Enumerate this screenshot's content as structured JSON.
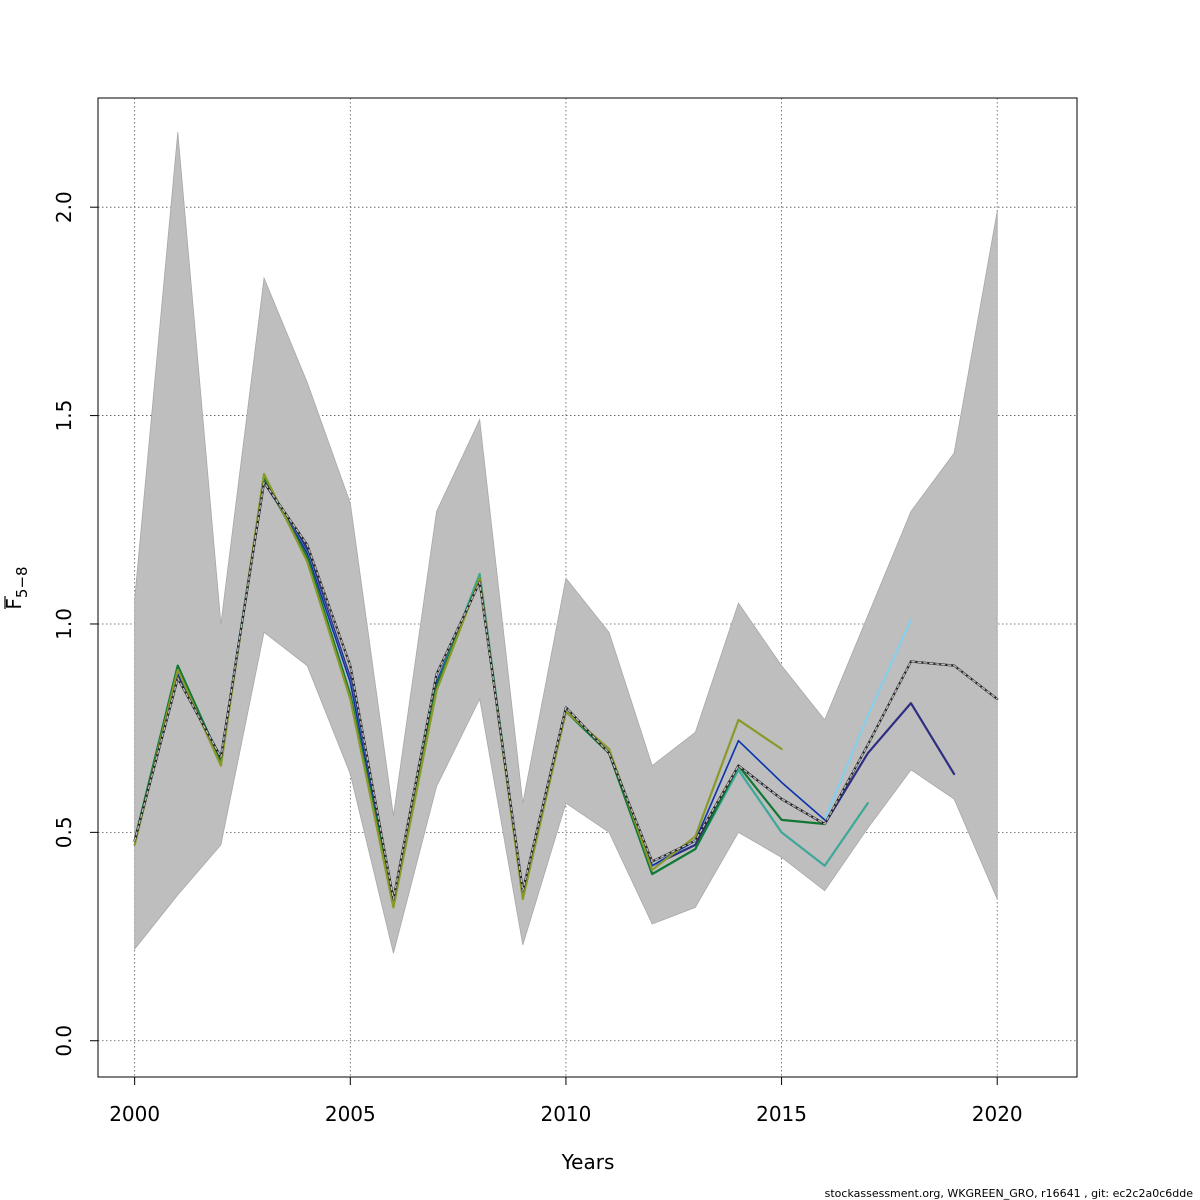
{
  "chart_data": {
    "type": "line",
    "xlabel": "Years",
    "ylabel_main": "F",
    "ylabel_sub": "5−8",
    "xlim": [
      1999.15,
      2021.85
    ],
    "ylim": [
      -0.087,
      2.262
    ],
    "x_ticks": [
      2000,
      2005,
      2010,
      2015,
      2020
    ],
    "y_ticks": [
      0.0,
      0.5,
      1.0,
      1.5,
      2.0
    ],
    "x_tick_labels": [
      "2000",
      "2005",
      "2010",
      "2015",
      "2020"
    ],
    "y_tick_labels": [
      "0.0",
      "0.5",
      "1.0",
      "1.5",
      "2.0"
    ],
    "grid": true,
    "confidence_band": {
      "years": [
        2000,
        2001,
        2002,
        2003,
        2004,
        2005,
        2006,
        2007,
        2008,
        2009,
        2010,
        2011,
        2012,
        2013,
        2014,
        2015,
        2016,
        2017,
        2018,
        2019,
        2020
      ],
      "upper": [
        1.06,
        2.18,
        1.0,
        1.83,
        1.58,
        1.29,
        0.54,
        1.27,
        1.49,
        0.57,
        1.11,
        0.98,
        0.66,
        0.74,
        1.05,
        0.9,
        0.77,
        1.02,
        1.27,
        1.41,
        1.99
      ],
      "lower": [
        0.22,
        0.35,
        0.47,
        0.98,
        0.9,
        0.64,
        0.21,
        0.61,
        0.82,
        0.23,
        0.57,
        0.5,
        0.28,
        0.32,
        0.5,
        0.44,
        0.36,
        0.51,
        0.65,
        0.58,
        0.34
      ],
      "color": "#bebebe"
    },
    "series": [
      {
        "color": "#2e2e80",
        "width": 2.2,
        "dashed": false,
        "x": [
          2000,
          2001,
          2002,
          2003,
          2004,
          2005,
          2006,
          2007,
          2008,
          2009,
          2010,
          2011,
          2012,
          2013,
          2014,
          2015,
          2016,
          2017,
          2018,
          2019
        ],
        "y": [
          0.48,
          0.87,
          0.68,
          1.34,
          1.18,
          0.87,
          0.33,
          0.86,
          1.11,
          0.35,
          0.8,
          0.69,
          0.42,
          0.47,
          0.66,
          0.58,
          0.52,
          0.69,
          0.81,
          0.64
        ]
      },
      {
        "color": "#87ceeb",
        "width": 2.2,
        "dashed": false,
        "x": [
          2000,
          2001,
          2002,
          2003,
          2004,
          2005,
          2006,
          2007,
          2008,
          2009,
          2010,
          2011,
          2012,
          2013,
          2014,
          2015,
          2016,
          2017,
          2018
        ],
        "y": [
          0.48,
          0.88,
          0.68,
          1.35,
          1.17,
          0.86,
          0.33,
          0.86,
          1.11,
          0.35,
          0.8,
          0.69,
          0.42,
          0.48,
          0.72,
          0.62,
          0.53,
          0.78,
          1.01
        ]
      },
      {
        "color": "#1a2ea0",
        "width": 1.6,
        "dashed": false,
        "x": [
          2000,
          2001,
          2002,
          2003,
          2004,
          2005,
          2006,
          2007,
          2008,
          2009,
          2010,
          2011,
          2012,
          2013,
          2014,
          2015,
          2016
        ],
        "y": [
          0.48,
          0.88,
          0.68,
          1.35,
          1.17,
          0.86,
          0.33,
          0.86,
          1.11,
          0.35,
          0.8,
          0.69,
          0.42,
          0.48,
          0.72,
          0.62,
          0.53
        ]
      },
      {
        "color": "#3ea898",
        "width": 2.2,
        "dashed": false,
        "x": [
          2000,
          2001,
          2002,
          2003,
          2004,
          2005,
          2006,
          2007,
          2008,
          2009,
          2010,
          2011,
          2012,
          2013,
          2014,
          2015,
          2016,
          2017
        ],
        "y": [
          0.48,
          0.9,
          0.67,
          1.35,
          1.16,
          0.83,
          0.33,
          0.85,
          1.12,
          0.35,
          0.79,
          0.69,
          0.4,
          0.46,
          0.65,
          0.5,
          0.42,
          0.57
        ]
      },
      {
        "color": "#117733",
        "width": 2.2,
        "dashed": false,
        "x": [
          2000,
          2001,
          2002,
          2003,
          2004,
          2005,
          2006,
          2007,
          2008,
          2009,
          2010,
          2011,
          2012,
          2013,
          2014,
          2015,
          2016
        ],
        "y": [
          0.48,
          0.9,
          0.67,
          1.35,
          1.16,
          0.83,
          0.33,
          0.85,
          1.11,
          0.35,
          0.79,
          0.69,
          0.4,
          0.46,
          0.66,
          0.53,
          0.52
        ]
      },
      {
        "color": "#8a9a2a",
        "width": 2.2,
        "dashed": false,
        "x": [
          2000,
          2001,
          2002,
          2003,
          2004,
          2005,
          2006,
          2007,
          2008,
          2009,
          2010,
          2011,
          2012,
          2013,
          2014,
          2015
        ],
        "y": [
          0.47,
          0.89,
          0.66,
          1.36,
          1.15,
          0.82,
          0.32,
          0.84,
          1.11,
          0.34,
          0.79,
          0.7,
          0.41,
          0.49,
          0.77,
          0.7
        ]
      },
      {
        "color": "#222222",
        "width": 2.2,
        "dashed": false,
        "x": [
          2000,
          2001,
          2002,
          2003,
          2004,
          2005,
          2006,
          2007,
          2008,
          2009,
          2010,
          2011,
          2012,
          2013,
          2014,
          2015,
          2016,
          2017,
          2018,
          2019,
          2020
        ],
        "y": [
          0.48,
          0.87,
          0.68,
          1.34,
          1.19,
          0.9,
          0.34,
          0.88,
          1.1,
          0.36,
          0.8,
          0.69,
          0.43,
          0.48,
          0.66,
          0.58,
          0.52,
          0.71,
          0.91,
          0.9,
          0.82
        ]
      },
      {
        "color": "#bebebe",
        "width": 1.3,
        "dashed": true,
        "x": [
          2000,
          2001,
          2002,
          2003,
          2004,
          2005,
          2006,
          2007,
          2008,
          2009,
          2010,
          2011,
          2012,
          2013,
          2014,
          2015,
          2016,
          2017,
          2018,
          2019,
          2020
        ],
        "y": [
          0.48,
          0.87,
          0.68,
          1.34,
          1.19,
          0.9,
          0.34,
          0.88,
          1.1,
          0.36,
          0.8,
          0.69,
          0.43,
          0.48,
          0.66,
          0.58,
          0.52,
          0.71,
          0.91,
          0.9,
          0.82
        ]
      }
    ]
  },
  "footer": {
    "text": "stockassessment.org, WKGREEN_GRO, r16641 , git: ec2c2a0c6dde"
  }
}
